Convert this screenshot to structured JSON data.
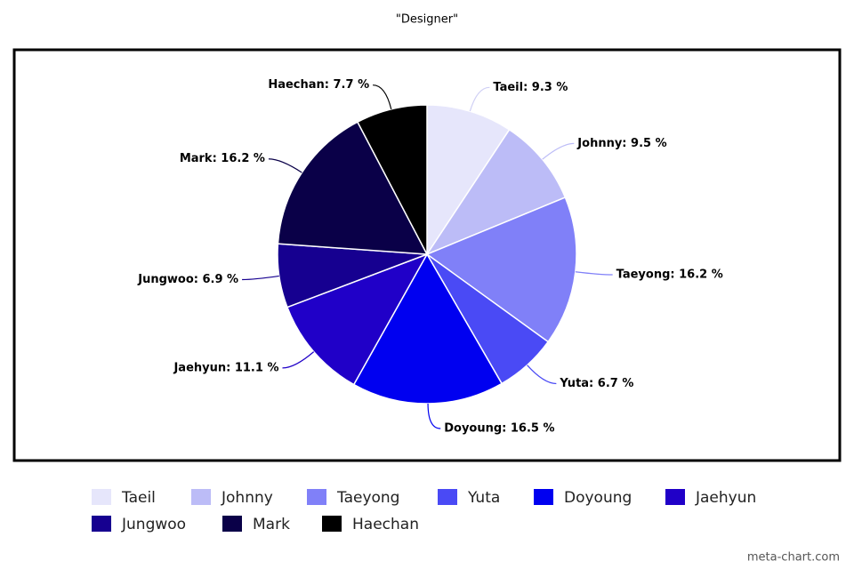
{
  "chart_data": {
    "type": "pie",
    "title": "\"Designer\"",
    "categories": [
      "Taeil",
      "Johnny",
      "Taeyong",
      "Yuta",
      "Doyoung",
      "Jaehyun",
      "Jungwoo",
      "Mark",
      "Haechan"
    ],
    "values": [
      9.3,
      9.5,
      16.2,
      6.7,
      16.5,
      11.1,
      6.9,
      16.2,
      7.7
    ],
    "value_labels": [
      "Taeil: 9.3 %",
      "Johnny: 9.5 %",
      "Taeyong: 16.2 %",
      "Yuta: 6.7 %",
      "Doyoung: 16.5 %",
      "Jaehyun: 11.1 %",
      "Jungwoo: 6.9 %",
      "Mark: 16.2 %",
      "Haechan: 7.7 %"
    ],
    "colors": [
      "#e6e6fb",
      "#bcbcf7",
      "#8080f8",
      "#4a4af5",
      "#0000f0",
      "#2000c8",
      "#160090",
      "#0a0048",
      "#000000"
    ],
    "watermark": "meta-chart.com"
  }
}
